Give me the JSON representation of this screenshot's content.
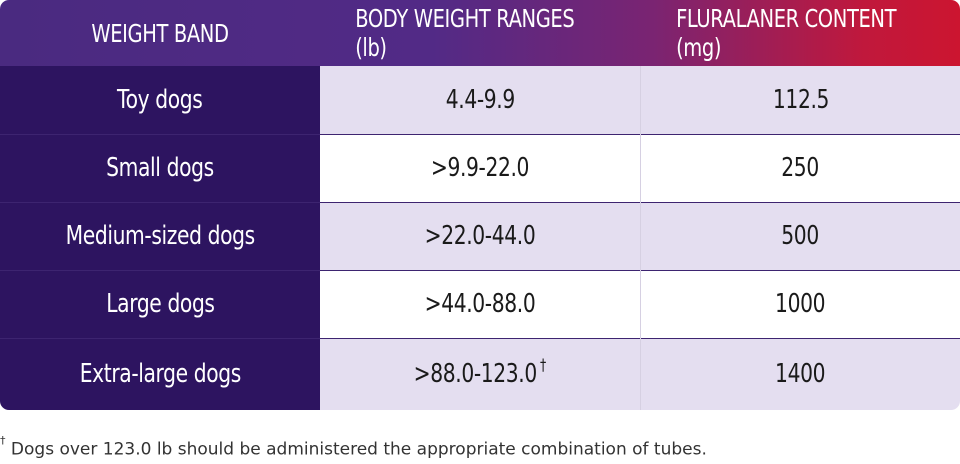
{
  "header": {
    "col1": "WEIGHT BAND",
    "col2": "BODY WEIGHT RANGES (lb)",
    "col3": "FLURALANER CONTENT (mg)"
  },
  "rows": [
    {
      "band": "Toy dogs",
      "range": "4.4-9.9",
      "content": "112.5"
    },
    {
      "band": "Small dogs",
      "range": ">9.9-22.0",
      "content": "250"
    },
    {
      "band": "Medium-sized dogs",
      "range": ">22.0-44.0",
      "content": "500"
    },
    {
      "band": "Large dogs",
      "range": ">44.0-88.0",
      "content": "1000"
    },
    {
      "band": "Extra-large dogs",
      "range": ">88.0-123.0",
      "range_mark": "†",
      "content": "1400"
    }
  ],
  "footnote": {
    "mark": "†",
    "text": "Dogs over 123.0 lb should be administered the appropriate combination of tubes."
  },
  "colors": {
    "band_column": "#2d1460",
    "row_shaded": "#e4def0",
    "header_start": "#4a2a80",
    "header_end": "#cc1530"
  }
}
